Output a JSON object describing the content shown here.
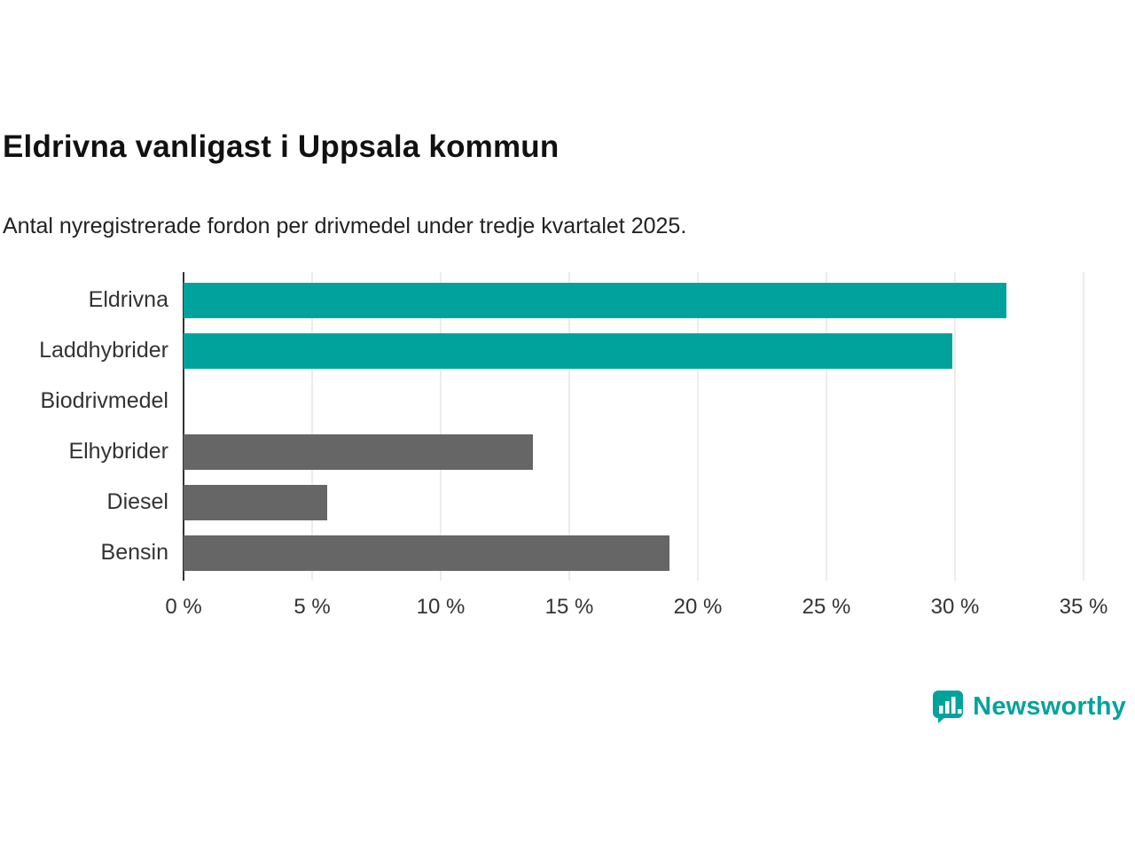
{
  "title": "Eldrivna vanligast i Uppsala kommun",
  "subtitle": "Antal nyregistrerade fordon per drivmedel under tredje kvartalet 2025.",
  "chart_data": {
    "type": "bar",
    "orientation": "horizontal",
    "categories": [
      "Eldrivna",
      "Laddhybrider",
      "Biodrivmedel",
      "Elhybrider",
      "Diesel",
      "Bensin"
    ],
    "values": [
      32.0,
      29.9,
      0,
      13.6,
      5.6,
      18.9
    ],
    "unit": "%",
    "colors": [
      "#00A39B",
      "#00A39B",
      "#666666",
      "#666666",
      "#666666",
      "#666666"
    ],
    "xlim": [
      0,
      35
    ],
    "x_ticks": [
      0,
      5,
      10,
      15,
      20,
      25,
      30,
      35
    ],
    "x_tick_labels": [
      "0 %",
      "5 %",
      "10 %",
      "15 %",
      "20 %",
      "25 %",
      "30 %",
      "35 %"
    ],
    "grid": true,
    "legend": "none"
  },
  "branding": {
    "logo_text": "Newsworthy",
    "brand_color": "#00A39B",
    "logo_icon": "bar-chart-speech-bubble-icon"
  }
}
